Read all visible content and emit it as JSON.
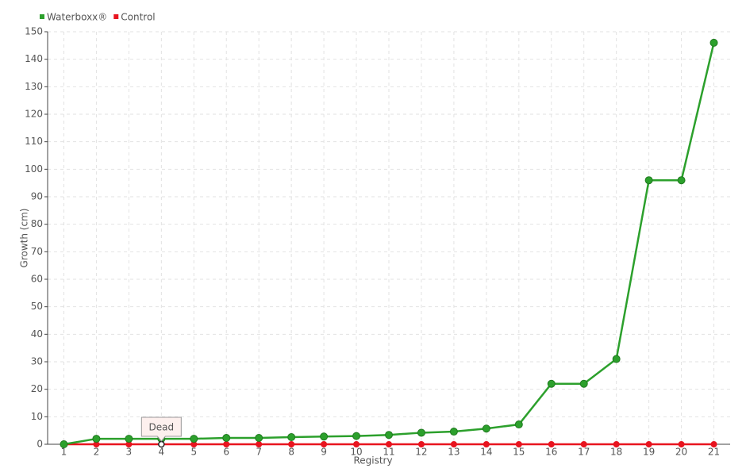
{
  "chart_data": {
    "type": "line",
    "x_label": "Registry",
    "y_label": "Growth (cm)",
    "categories": [
      "1",
      "2",
      "3",
      "4",
      "5",
      "6",
      "7",
      "8",
      "9",
      "10",
      "11",
      "12",
      "13",
      "14",
      "15",
      "16",
      "17",
      "18",
      "19",
      "20",
      "21"
    ],
    "series": [
      {
        "name": "Waterboxx®",
        "color": "#2ca02c",
        "values": [
          0,
          2,
          2,
          2,
          2,
          2.3,
          2.3,
          2.6,
          2.8,
          3,
          3.4,
          4.2,
          4.6,
          5.7,
          7.2,
          22,
          22,
          31,
          96,
          96,
          146
        ]
      },
      {
        "name": "Control",
        "color": "#e8141f",
        "values": [
          0,
          0,
          0,
          0,
          0,
          0,
          0,
          0,
          0,
          0,
          0,
          0,
          0,
          0,
          0,
          0,
          0,
          0,
          0,
          0,
          0
        ]
      }
    ],
    "annotations": [
      {
        "text": "Dead",
        "x": 4,
        "y": 0
      }
    ],
    "ylim": [
      0,
      150
    ],
    "yticks": [
      0,
      10,
      20,
      30,
      40,
      50,
      60,
      70,
      80,
      90,
      100,
      110,
      120,
      130,
      140,
      150
    ],
    "grid": true,
    "legend": "top-left"
  }
}
